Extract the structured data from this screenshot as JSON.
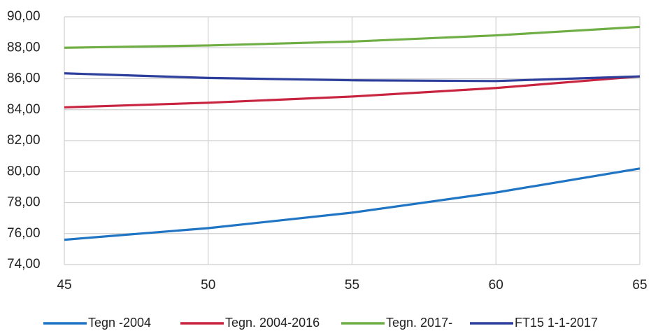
{
  "chart_data": {
    "type": "line",
    "x": [
      45,
      50,
      55,
      60,
      65
    ],
    "series": [
      {
        "name": "Tegn -2004",
        "color": "#1f74c4",
        "values": [
          75.6,
          76.35,
          77.35,
          78.65,
          80.2
        ]
      },
      {
        "name": "Tegn. 2004-2016",
        "color": "#c8233f",
        "values": [
          84.15,
          84.45,
          84.85,
          85.4,
          86.15
        ]
      },
      {
        "name": "Tegn. 2017-",
        "color": "#6fae45",
        "values": [
          88.0,
          88.15,
          88.4,
          88.8,
          89.35
        ]
      },
      {
        "name": "FT15 1-1-2017",
        "color": "#2d3f9c",
        "values": [
          86.35,
          86.05,
          85.9,
          85.85,
          86.15
        ]
      }
    ],
    "xlim": [
      45,
      65
    ],
    "xticks": [
      45,
      50,
      55,
      60,
      65
    ],
    "ylim": [
      74,
      90
    ],
    "yticks": [
      {
        "value": 74,
        "label": "74,00"
      },
      {
        "value": 76,
        "label": "76,00"
      },
      {
        "value": 78,
        "label": "78,00"
      },
      {
        "value": 80,
        "label": "80,00"
      },
      {
        "value": 82,
        "label": "82,00"
      },
      {
        "value": 84,
        "label": "84,00"
      },
      {
        "value": 86,
        "label": "86,00"
      },
      {
        "value": 88,
        "label": "88,00"
      },
      {
        "value": 90,
        "label": "90,00"
      }
    ],
    "grid": true,
    "legend": "bottom"
  }
}
